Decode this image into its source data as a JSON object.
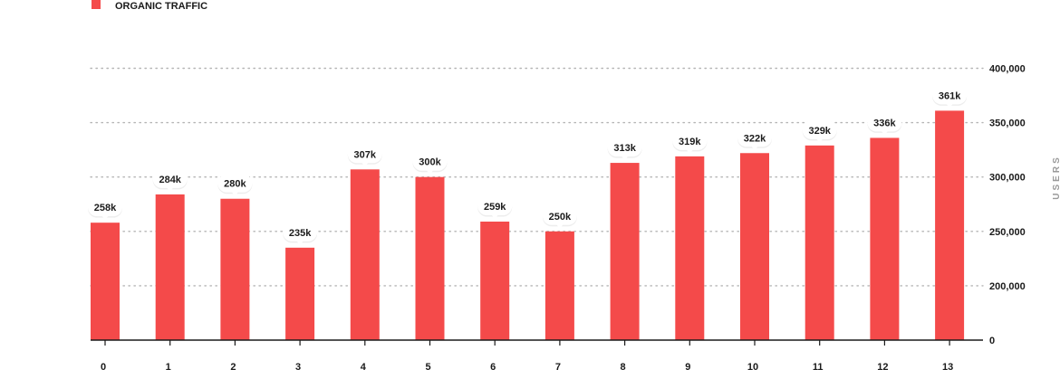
{
  "chart_data": {
    "type": "bar",
    "legend": [
      {
        "name": "ORGANIC TRAFFIC",
        "color": "#f44a4a"
      }
    ],
    "categories": [
      "0",
      "1",
      "2",
      "3",
      "4",
      "5",
      "6",
      "7",
      "8",
      "9",
      "10",
      "11",
      "12",
      "13"
    ],
    "series": [
      {
        "name": "ORGANIC TRAFFIC",
        "color": "#f44a4a",
        "values": [
          258000,
          284000,
          280000,
          235000,
          307000,
          300000,
          259000,
          250000,
          313000,
          319000,
          322000,
          329000,
          336000,
          361000
        ],
        "data_labels": [
          "258k",
          "284k",
          "280k",
          "235k",
          "307k",
          "300k",
          "259k",
          "250k",
          "313k",
          "319k",
          "322k",
          "329k",
          "336k",
          "361k"
        ]
      }
    ],
    "y_ticks": [
      0,
      200000,
      250000,
      300000,
      350000,
      400000
    ],
    "y_tick_labels": [
      "0",
      "200,000",
      "250,000",
      "300,000",
      "350,000",
      "400,000"
    ],
    "ylabel": "USERS",
    "grid": true,
    "legend_position": "top-left",
    "y_axis_position": "right"
  }
}
